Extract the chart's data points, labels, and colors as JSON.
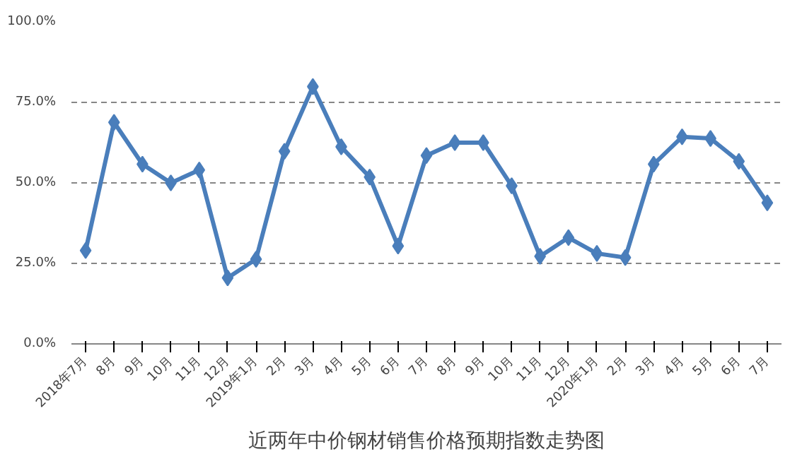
{
  "chart_data": {
    "type": "line",
    "title": "近两年中价钢材销售价格预期指数走势图",
    "categories": [
      "2018年7月",
      "8月",
      "9月",
      "10月",
      "11月",
      "12月",
      "2019年1月",
      "2月",
      "3月",
      "4月",
      "5月",
      "6月",
      "7月",
      "8月",
      "9月",
      "10月",
      "11月",
      "12月",
      "2020年1月",
      "2月",
      "3月",
      "4月",
      "5月",
      "6月",
      "7月"
    ],
    "series": [
      {
        "color": "#4a7ebb",
        "values": [
          29.0,
          68.8,
          55.8,
          50.0,
          54.0,
          20.5,
          26.3,
          59.8,
          79.9,
          61.2,
          51.8,
          30.4,
          58.5,
          62.5,
          62.5,
          49.1,
          27.2,
          33.0,
          28.1,
          26.8,
          55.8,
          64.3,
          63.8,
          56.7,
          43.8
        ]
      }
    ],
    "ylim": [
      0,
      100
    ],
    "yticks": [
      {
        "value": 0,
        "label": "0.0%"
      },
      {
        "value": 25,
        "label": "25.0%"
      },
      {
        "value": 50,
        "label": "50.0%"
      },
      {
        "value": 75,
        "label": "75.0%"
      },
      {
        "value": 100,
        "label": "100.0%"
      }
    ],
    "grid": "y",
    "marker": "diamond",
    "line_style": "solid"
  }
}
